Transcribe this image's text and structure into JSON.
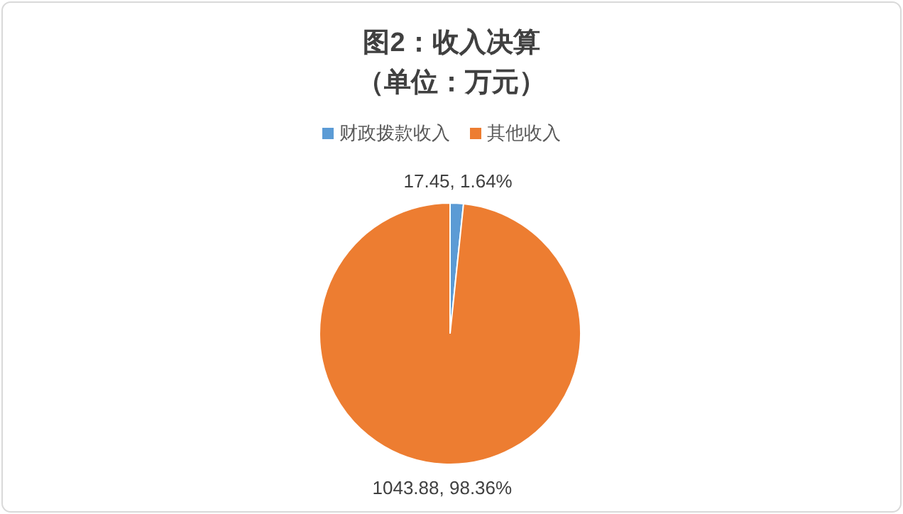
{
  "chart_data": {
    "type": "pie",
    "title": "图2：收入决算",
    "subtitle": "（单位：万元）",
    "categories": [
      "财政拨款收入",
      "其他收入"
    ],
    "values": [
      17.45,
      1043.88
    ],
    "colors": [
      "#5b9bd5",
      "#ed7d31"
    ],
    "value_labels": [
      "17.45, 1.64%",
      "1043.88, 98.36%"
    ],
    "legend": "top"
  }
}
